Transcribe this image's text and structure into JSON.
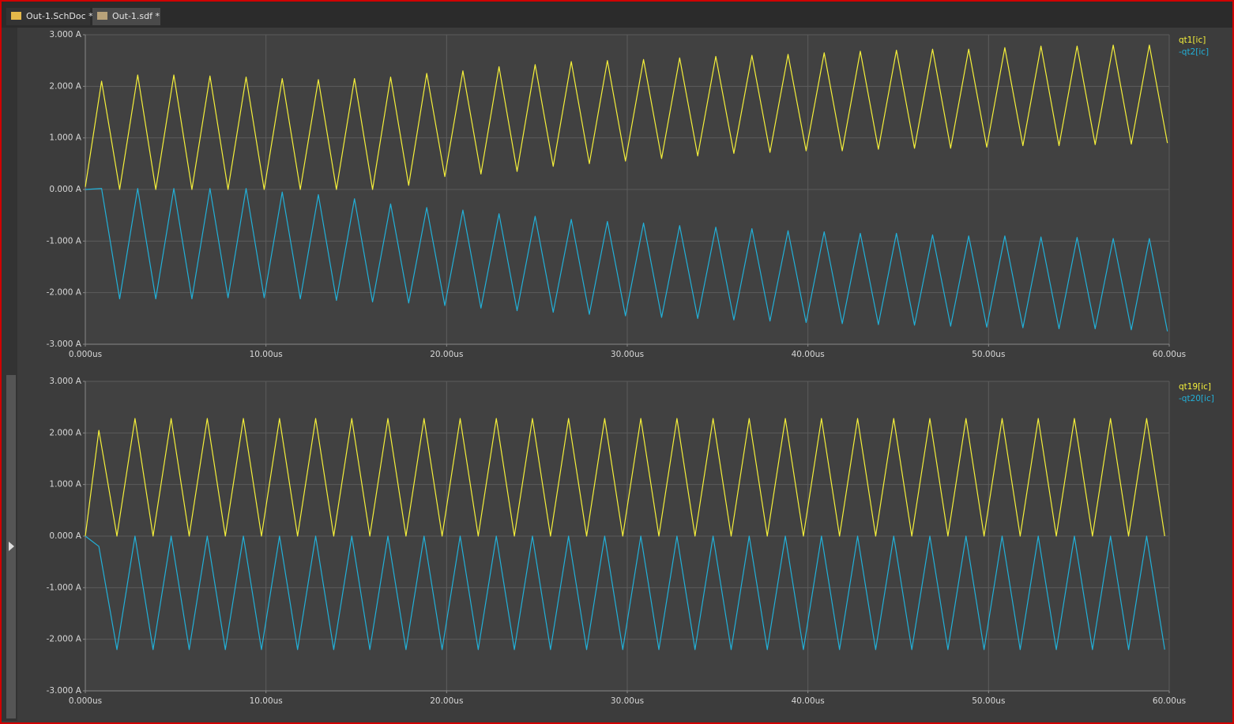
{
  "tabs": [
    "Out-1.SchDoc *",
    "Out-1.sdf *"
  ],
  "chart_data": [
    {
      "type": "line",
      "grid": true,
      "legend": "right",
      "x": [
        0,
        0.9,
        1.9,
        2.9,
        3.9,
        4.9,
        5.9,
        6.9,
        7.9,
        8.9,
        9.9,
        10.9,
        11.9,
        12.9,
        13.9,
        14.9,
        15.9,
        16.9,
        17.9,
        18.9,
        19.9,
        20.9,
        21.9,
        22.9,
        23.9,
        24.9,
        25.9,
        26.9,
        27.9,
        28.9,
        29.9,
        30.9,
        31.9,
        32.9,
        33.9,
        34.9,
        35.9,
        36.9,
        37.9,
        38.9,
        39.9,
        40.9,
        41.9,
        42.9,
        43.9,
        44.9,
        45.9,
        46.9,
        47.9,
        48.9,
        49.9,
        50.9,
        51.9,
        52.9,
        53.9,
        54.9,
        55.9,
        56.9,
        57.9,
        58.9,
        59.9
      ],
      "series": [
        {
          "name": "qt1[ic]",
          "color": "#f5f03a",
          "values": [
            0.05,
            2.1,
            0,
            2.22,
            0,
            2.22,
            0,
            2.2,
            0,
            2.18,
            0,
            2.15,
            0,
            2.13,
            0,
            2.15,
            0,
            2.18,
            0.08,
            2.25,
            0.25,
            2.3,
            0.3,
            2.38,
            0.35,
            2.42,
            0.45,
            2.48,
            0.5,
            2.5,
            0.55,
            2.52,
            0.6,
            2.55,
            0.65,
            2.58,
            0.7,
            2.6,
            0.72,
            2.62,
            0.75,
            2.65,
            0.75,
            2.68,
            0.78,
            2.7,
            0.8,
            2.72,
            0.8,
            2.72,
            0.82,
            2.75,
            0.85,
            2.78,
            0.85,
            2.78,
            0.87,
            2.8,
            0.88,
            2.8,
            0.9
          ]
        },
        {
          "name": "-qt2[ic]",
          "color": "#22b0d8",
          "values": [
            0,
            0.02,
            -2.12,
            0.02,
            -2.12,
            0.02,
            -2.12,
            0.02,
            -2.1,
            0.02,
            -2.1,
            -0.05,
            -2.12,
            -0.1,
            -2.15,
            -0.18,
            -2.18,
            -0.28,
            -2.2,
            -0.35,
            -2.25,
            -0.4,
            -2.3,
            -0.47,
            -2.35,
            -0.52,
            -2.38,
            -0.58,
            -2.42,
            -0.62,
            -2.45,
            -0.65,
            -2.48,
            -0.7,
            -2.5,
            -0.73,
            -2.53,
            -0.76,
            -2.55,
            -0.8,
            -2.58,
            -0.82,
            -2.6,
            -0.85,
            -2.62,
            -0.85,
            -2.63,
            -0.88,
            -2.65,
            -0.9,
            -2.67,
            -0.9,
            -2.68,
            -0.92,
            -2.7,
            -0.93,
            -2.7,
            -0.95,
            -2.72,
            -0.95,
            -2.75
          ]
        }
      ],
      "xlim": [
        0,
        60
      ],
      "xticks": [
        {
          "value": 0,
          "label": "0.000us"
        },
        {
          "value": 10,
          "label": "10.00us"
        },
        {
          "value": 20,
          "label": "20.00us"
        },
        {
          "value": 30,
          "label": "30.00us"
        },
        {
          "value": 40,
          "label": "40.00us"
        },
        {
          "value": 50,
          "label": "50.00us"
        },
        {
          "value": 60,
          "label": "60.00us"
        }
      ],
      "ylim": [
        -3,
        3
      ],
      "yticks": [
        {
          "value": 3,
          "label": "3.000 A"
        },
        {
          "value": 2,
          "label": "2.000 A"
        },
        {
          "value": 1,
          "label": "1.000 A"
        },
        {
          "value": 0,
          "label": "0.000 A"
        },
        {
          "value": -1,
          "label": "-1.000 A"
        },
        {
          "value": -2,
          "label": "-2.000 A"
        },
        {
          "value": -3,
          "label": "-3.000 A"
        }
      ]
    },
    {
      "type": "line",
      "grid": true,
      "legend": "right",
      "x": [
        0,
        0.75,
        1.75,
        2.75,
        3.75,
        4.75,
        5.75,
        6.75,
        7.75,
        8.75,
        9.75,
        10.75,
        11.75,
        12.75,
        13.75,
        14.75,
        15.75,
        16.75,
        17.75,
        18.75,
        19.75,
        20.75,
        21.75,
        22.75,
        23.75,
        24.75,
        25.75,
        26.75,
        27.75,
        28.75,
        29.75,
        30.75,
        31.75,
        32.75,
        33.75,
        34.75,
        35.75,
        36.75,
        37.75,
        38.75,
        39.75,
        40.75,
        41.75,
        42.75,
        43.75,
        44.75,
        45.75,
        46.75,
        47.75,
        48.75,
        49.75,
        50.75,
        51.75,
        52.75,
        53.75,
        54.75,
        55.75,
        56.75,
        57.75,
        58.75,
        59.75
      ],
      "series": [
        {
          "name": "qt19[ic]",
          "color": "#f5f03a",
          "values": [
            0,
            2.05,
            0,
            2.28,
            0,
            2.28,
            0,
            2.28,
            0,
            2.28,
            0,
            2.28,
            0,
            2.28,
            0,
            2.28,
            0,
            2.28,
            0,
            2.28,
            0,
            2.28,
            0,
            2.28,
            0,
            2.28,
            0,
            2.28,
            0,
            2.28,
            0,
            2.28,
            0,
            2.28,
            0,
            2.28,
            0,
            2.28,
            0,
            2.28,
            0,
            2.28,
            0,
            2.28,
            0,
            2.28,
            0,
            2.28,
            0,
            2.28,
            0,
            2.28,
            0,
            2.28,
            0,
            2.28,
            0,
            2.28,
            0,
            2.28,
            0
          ]
        },
        {
          "name": "-qt20[ic]",
          "color": "#22b0d8",
          "values": [
            0,
            -0.2,
            -2.2,
            0,
            -2.2,
            0,
            -2.2,
            0,
            -2.2,
            0,
            -2.2,
            0,
            -2.2,
            0,
            -2.2,
            0,
            -2.2,
            0,
            -2.2,
            0,
            -2.2,
            0,
            -2.2,
            0,
            -2.2,
            0,
            -2.2,
            0,
            -2.2,
            0,
            -2.2,
            0,
            -2.2,
            0,
            -2.2,
            0,
            -2.2,
            0,
            -2.2,
            0,
            -2.2,
            0,
            -2.2,
            0,
            -2.2,
            0,
            -2.2,
            0,
            -2.2,
            0,
            -2.2,
            0,
            -2.2,
            0,
            -2.2,
            0,
            -2.2,
            0,
            -2.2,
            0,
            -2.2
          ]
        }
      ],
      "xlim": [
        0,
        60
      ],
      "xticks": [
        {
          "value": 0,
          "label": "0.000us"
        },
        {
          "value": 10,
          "label": "10.00us"
        },
        {
          "value": 20,
          "label": "20.00us"
        },
        {
          "value": 30,
          "label": "30.00us"
        },
        {
          "value": 40,
          "label": "40.00us"
        },
        {
          "value": 50,
          "label": "50.00us"
        },
        {
          "value": 60,
          "label": "60.00us"
        }
      ],
      "ylim": [
        -3,
        3
      ],
      "yticks": [
        {
          "value": 3,
          "label": "3.000 A"
        },
        {
          "value": 2,
          "label": "2.000 A"
        },
        {
          "value": 1,
          "label": "1.000 A"
        },
        {
          "value": 0,
          "label": "0.000 A"
        },
        {
          "value": -1,
          "label": "-1.000 A"
        },
        {
          "value": -2,
          "label": "-2.000 A"
        },
        {
          "value": -3,
          "label": "-3.000 A"
        }
      ]
    }
  ]
}
